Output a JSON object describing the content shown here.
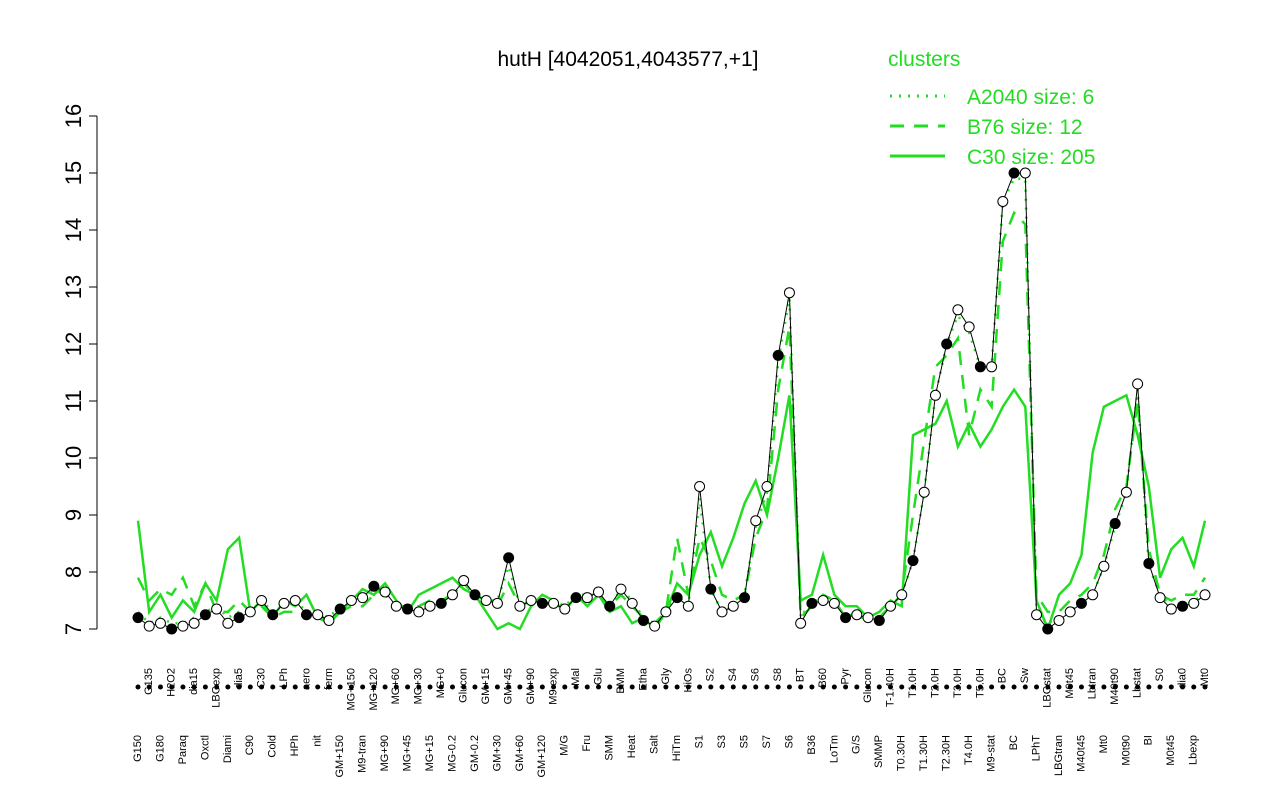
{
  "chart_data": {
    "type": "line",
    "title": "hutH [4042051,4043577,+1]",
    "legend_title": "clusters",
    "legend_position": "top-right",
    "point_color": "#000000",
    "categories": [
      "G150",
      "G135",
      "G180",
      "H2O2",
      "Paraq",
      "dia15",
      "Oxctl",
      "LBGexp",
      "Diami",
      "dia5",
      "C90",
      "C30",
      "Cold",
      "LPh",
      "HPh",
      "aero",
      "nit",
      "ferm",
      "GM+150",
      "MG+150",
      "M9-tran",
      "MG+120",
      "MG+90",
      "MG+60",
      "MG+45",
      "MG+30",
      "MG+15",
      "MG+0",
      "MG-0.2",
      "Glucon",
      "GM-0.2",
      "GM+15",
      "GM+30",
      "GM+45",
      "GM+60",
      "GM+90",
      "GM+120",
      "M9-exp",
      "M/G",
      "Mal",
      "Fru",
      "Glu",
      "SMM",
      "BMM",
      "Heat",
      "Etha",
      "Salt",
      "Gly",
      "HiTm",
      "HiOs",
      "S1",
      "S2",
      "S3",
      "S4",
      "S5",
      "S6",
      "S7",
      "S8",
      "S6",
      "BT",
      "B36",
      "B60",
      "LoTm",
      "Pyr",
      "G/S",
      "Glucon",
      "SMMP",
      "T-1.40H",
      "T0.30H",
      "T1.0H",
      "T1.30H",
      "T2.0H",
      "T2.30H",
      "T3.0H",
      "T4.0H",
      "T5.0H",
      "M9-stat",
      "BC",
      "BC",
      "Sw",
      "LPhT",
      "LBGstat",
      "LBGtran",
      "M0t45",
      "M40t45",
      "Lbtran",
      "Mt0",
      "M40t90",
      "M0t90",
      "Lbstat",
      "BI",
      "S0",
      "M0t45",
      "dia0",
      "Lbexp",
      "Mt0"
    ],
    "values": [
      7.2,
      7.05,
      7.1,
      7.0,
      7.05,
      7.1,
      7.25,
      7.35,
      7.1,
      7.2,
      7.3,
      7.5,
      7.25,
      7.45,
      7.5,
      7.25,
      7.25,
      7.15,
      7.35,
      7.5,
      7.55,
      7.75,
      7.65,
      7.4,
      7.35,
      7.3,
      7.4,
      7.45,
      7.6,
      7.85,
      7.6,
      7.5,
      7.45,
      8.25,
      7.4,
      7.5,
      7.45,
      7.45,
      7.35,
      7.55,
      7.55,
      7.65,
      7.4,
      7.7,
      7.45,
      7.15,
      7.05,
      7.3,
      7.55,
      7.4,
      9.5,
      7.7,
      7.3,
      7.4,
      7.55,
      8.9,
      9.5,
      11.8,
      12.9,
      7.1,
      7.45,
      7.5,
      7.45,
      7.2,
      7.25,
      7.2,
      7.15,
      7.4,
      7.6,
      8.2,
      9.4,
      11.1,
      12.0,
      12.6,
      12.3,
      11.6,
      11.6,
      14.5,
      15.0,
      15.0,
      7.25,
      7.0,
      7.15,
      7.3,
      7.45,
      7.6,
      8.1,
      8.85,
      9.4,
      11.3,
      8.15,
      7.55,
      7.35,
      7.4,
      7.45,
      7.6
    ],
    "series": [
      {
        "name": "A2040 size: 6",
        "color": "#22dd22",
        "linestyle": "dotted",
        "values": [
          7.3,
          7.1,
          7.2,
          7.1,
          7.1,
          7.2,
          7.3,
          7.4,
          7.2,
          7.3,
          7.3,
          7.5,
          7.3,
          7.5,
          7.5,
          7.3,
          7.3,
          7.2,
          7.4,
          7.5,
          7.6,
          7.7,
          7.6,
          7.4,
          7.4,
          7.3,
          7.4,
          7.5,
          7.6,
          7.8,
          7.6,
          7.5,
          7.5,
          8.1,
          7.4,
          7.5,
          7.5,
          7.5,
          7.4,
          7.6,
          7.6,
          7.6,
          7.4,
          7.7,
          7.5,
          7.2,
          7.1,
          7.3,
          7.6,
          7.4,
          9.3,
          7.7,
          7.3,
          7.4,
          7.6,
          8.8,
          9.4,
          11.7,
          12.8,
          7.2,
          7.5,
          7.5,
          7.5,
          7.2,
          7.3,
          7.2,
          7.2,
          7.4,
          7.6,
          8.2,
          9.4,
          11.1,
          12.0,
          12.5,
          12.2,
          11.6,
          11.6,
          14.5,
          14.9,
          14.9,
          7.3,
          7.1,
          7.2,
          7.3,
          7.5,
          7.6,
          8.1,
          8.8,
          9.4,
          11.2,
          8.1,
          7.6,
          7.4,
          7.4,
          7.5,
          7.6
        ]
      },
      {
        "name": "B76 size: 12",
        "color": "#22dd22",
        "linestyle": "dashed",
        "values": [
          7.9,
          7.5,
          7.7,
          7.6,
          7.9,
          7.4,
          7.8,
          7.3,
          7.3,
          7.5,
          7.3,
          7.4,
          7.2,
          7.3,
          7.3,
          7.2,
          7.3,
          7.1,
          7.3,
          7.4,
          7.4,
          7.6,
          7.7,
          7.4,
          7.4,
          7.4,
          7.5,
          7.5,
          7.6,
          7.8,
          7.6,
          7.5,
          7.4,
          7.8,
          7.4,
          7.5,
          7.4,
          7.5,
          7.3,
          7.5,
          7.5,
          7.6,
          7.4,
          7.6,
          7.4,
          7.2,
          7.1,
          7.3,
          8.6,
          7.6,
          8.6,
          8.2,
          7.6,
          7.5,
          7.6,
          8.6,
          9.1,
          11.2,
          12.3,
          7.2,
          7.4,
          7.6,
          7.5,
          7.2,
          7.2,
          7.2,
          7.2,
          7.4,
          7.6,
          9.0,
          10.3,
          11.6,
          11.8,
          12.1,
          10.4,
          11.2,
          10.9,
          13.8,
          14.3,
          14.1,
          7.6,
          7.3,
          7.3,
          7.5,
          7.6,
          7.8,
          8.3,
          9.1,
          9.5,
          11.0,
          8.4,
          7.6,
          7.5,
          7.6,
          7.6,
          7.9
        ]
      },
      {
        "name": "C30 size: 205",
        "color": "#22dd22",
        "linestyle": "solid",
        "values": [
          8.9,
          7.3,
          7.6,
          7.2,
          7.5,
          7.3,
          7.8,
          7.5,
          8.4,
          8.6,
          7.3,
          7.5,
          7.2,
          7.5,
          7.4,
          7.6,
          7.2,
          7.1,
          7.3,
          7.5,
          7.7,
          7.6,
          7.8,
          7.5,
          7.3,
          7.6,
          7.7,
          7.8,
          7.9,
          7.7,
          7.6,
          7.3,
          7.0,
          7.1,
          7.0,
          7.4,
          7.6,
          7.5,
          7.3,
          7.6,
          7.4,
          7.6,
          7.3,
          7.4,
          7.1,
          7.2,
          7.0,
          7.3,
          7.8,
          7.6,
          8.3,
          8.7,
          8.1,
          8.6,
          9.2,
          9.6,
          9.0,
          10.0,
          11.1,
          7.5,
          7.6,
          8.3,
          7.6,
          7.4,
          7.4,
          7.2,
          7.3,
          7.5,
          7.4,
          10.4,
          10.5,
          10.6,
          11.0,
          10.2,
          10.6,
          10.2,
          10.5,
          10.9,
          11.2,
          10.9,
          7.5,
          7.0,
          7.6,
          7.8,
          8.3,
          10.1,
          10.9,
          11.0,
          11.1,
          10.4,
          9.5,
          7.9,
          8.4,
          8.6,
          8.1,
          8.9
        ]
      }
    ],
    "ylim": [
      7,
      16
    ],
    "yticks": [
      7,
      8,
      9,
      10,
      11,
      12,
      13,
      14,
      15,
      16
    ],
    "grid": false
  }
}
